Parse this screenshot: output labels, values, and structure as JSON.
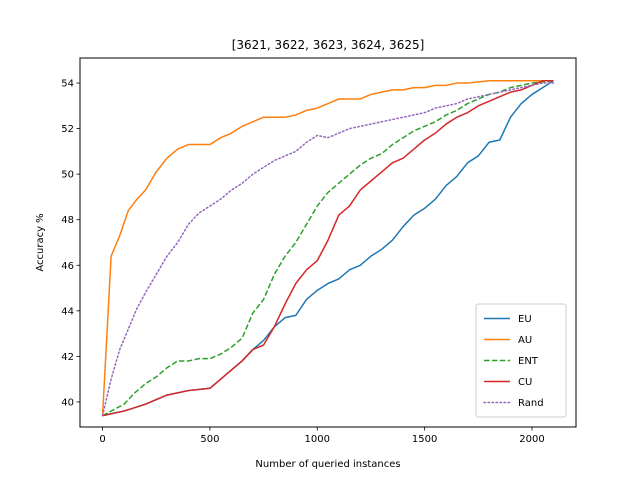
{
  "chart_data": {
    "type": "line",
    "title": "[3621, 3622, 3623, 3624, 3625]",
    "xlabel": "Number of queried instances",
    "ylabel": "Accuracy %",
    "xlim": [
      -105,
      2205
    ],
    "ylim": [
      38.9,
      55.1
    ],
    "xticks": [
      0,
      500,
      1000,
      1500,
      2000
    ],
    "yticks": [
      40,
      42,
      44,
      46,
      48,
      50,
      52,
      54
    ],
    "grid": false,
    "legend_position": "lower-right",
    "series": [
      {
        "name": " EU",
        "color": "#1f77b4",
        "style": "solid",
        "x": [
          0,
          100,
          200,
          300,
          400,
          500,
          550,
          600,
          650,
          700,
          750,
          800,
          850,
          900,
          950,
          1000,
          1050,
          1100,
          1150,
          1200,
          1250,
          1300,
          1350,
          1400,
          1450,
          1500,
          1550,
          1600,
          1650,
          1700,
          1750,
          1800,
          1850,
          1900,
          1950,
          2000,
          2050,
          2100
        ],
        "y": [
          39.4,
          39.6,
          39.9,
          40.3,
          40.5,
          40.6,
          41.0,
          41.4,
          41.8,
          42.3,
          42.7,
          43.3,
          43.7,
          43.8,
          44.5,
          44.9,
          45.2,
          45.4,
          45.8,
          46.0,
          46.4,
          46.7,
          47.1,
          47.7,
          48.2,
          48.5,
          48.9,
          49.5,
          49.9,
          50.5,
          50.8,
          51.4,
          51.5,
          52.5,
          53.1,
          53.5,
          53.8,
          54.1
        ]
      },
      {
        "name": " AU",
        "color": "#ff7f0e",
        "style": "solid",
        "x": [
          0,
          40,
          80,
          120,
          160,
          200,
          250,
          300,
          350,
          400,
          450,
          500,
          550,
          600,
          650,
          700,
          750,
          800,
          850,
          900,
          950,
          1000,
          1050,
          1100,
          1150,
          1200,
          1250,
          1300,
          1350,
          1400,
          1450,
          1500,
          1550,
          1600,
          1650,
          1700,
          1800,
          1900,
          2000,
          2100
        ],
        "y": [
          39.4,
          46.4,
          47.3,
          48.4,
          48.9,
          49.3,
          50.1,
          50.7,
          51.1,
          51.3,
          51.3,
          51.3,
          51.6,
          51.8,
          52.1,
          52.3,
          52.5,
          52.5,
          52.5,
          52.6,
          52.8,
          52.9,
          53.1,
          53.3,
          53.3,
          53.3,
          53.5,
          53.6,
          53.7,
          53.7,
          53.8,
          53.8,
          53.9,
          53.9,
          54.0,
          54.0,
          54.1,
          54.1,
          54.1,
          54.1
        ]
      },
      {
        "name": " ENT",
        "color": "#2ca02c",
        "style": "dashed",
        "x": [
          0,
          100,
          150,
          200,
          250,
          300,
          350,
          400,
          450,
          500,
          550,
          600,
          650,
          700,
          750,
          800,
          850,
          900,
          950,
          1000,
          1050,
          1100,
          1150,
          1200,
          1250,
          1300,
          1350,
          1400,
          1450,
          1500,
          1550,
          1600,
          1650,
          1700,
          1750,
          1800,
          1850,
          1900,
          1950,
          2000,
          2100
        ],
        "y": [
          39.4,
          39.9,
          40.4,
          40.8,
          41.1,
          41.5,
          41.8,
          41.8,
          41.9,
          41.9,
          42.1,
          42.4,
          42.8,
          43.9,
          44.5,
          45.6,
          46.4,
          47.0,
          47.8,
          48.6,
          49.2,
          49.6,
          50.0,
          50.4,
          50.7,
          50.9,
          51.3,
          51.6,
          51.9,
          52.1,
          52.3,
          52.6,
          52.8,
          53.1,
          53.3,
          53.5,
          53.6,
          53.8,
          53.9,
          54.0,
          54.1
        ]
      },
      {
        "name": " CU",
        "color": "#d62728",
        "style": "solid",
        "x": [
          0,
          100,
          200,
          300,
          400,
          500,
          550,
          600,
          650,
          700,
          750,
          800,
          850,
          900,
          950,
          1000,
          1050,
          1100,
          1150,
          1200,
          1250,
          1300,
          1350,
          1400,
          1450,
          1500,
          1550,
          1600,
          1650,
          1700,
          1750,
          1800,
          1850,
          1900,
          1950,
          2000,
          2050,
          2100
        ],
        "y": [
          39.4,
          39.6,
          39.9,
          40.3,
          40.5,
          40.6,
          41.0,
          41.4,
          41.8,
          42.3,
          42.5,
          43.3,
          44.3,
          45.2,
          45.8,
          46.2,
          47.1,
          48.2,
          48.6,
          49.3,
          49.7,
          50.1,
          50.5,
          50.7,
          51.1,
          51.5,
          51.8,
          52.2,
          52.5,
          52.7,
          53.0,
          53.2,
          53.4,
          53.6,
          53.7,
          53.9,
          54.1,
          54.1
        ]
      },
      {
        "name": " Rand",
        "color": "#9467bd",
        "style": "dotted",
        "x": [
          0,
          40,
          80,
          120,
          160,
          200,
          250,
          300,
          350,
          400,
          450,
          500,
          550,
          600,
          650,
          700,
          750,
          800,
          850,
          900,
          950,
          1000,
          1050,
          1100,
          1150,
          1200,
          1250,
          1300,
          1350,
          1400,
          1450,
          1500,
          1550,
          1600,
          1650,
          1700,
          1750,
          1800,
          1850,
          1900,
          1950,
          2000,
          2050,
          2100
        ],
        "y": [
          39.4,
          41.0,
          42.3,
          43.2,
          44.1,
          44.8,
          45.6,
          46.4,
          47.0,
          47.8,
          48.3,
          48.6,
          48.9,
          49.3,
          49.6,
          50.0,
          50.3,
          50.6,
          50.8,
          51.0,
          51.4,
          51.7,
          51.6,
          51.8,
          52.0,
          52.1,
          52.2,
          52.3,
          52.4,
          52.5,
          52.6,
          52.7,
          52.9,
          53.0,
          53.1,
          53.3,
          53.4,
          53.5,
          53.6,
          53.7,
          53.8,
          53.9,
          54.0,
          54.0
        ]
      }
    ]
  }
}
